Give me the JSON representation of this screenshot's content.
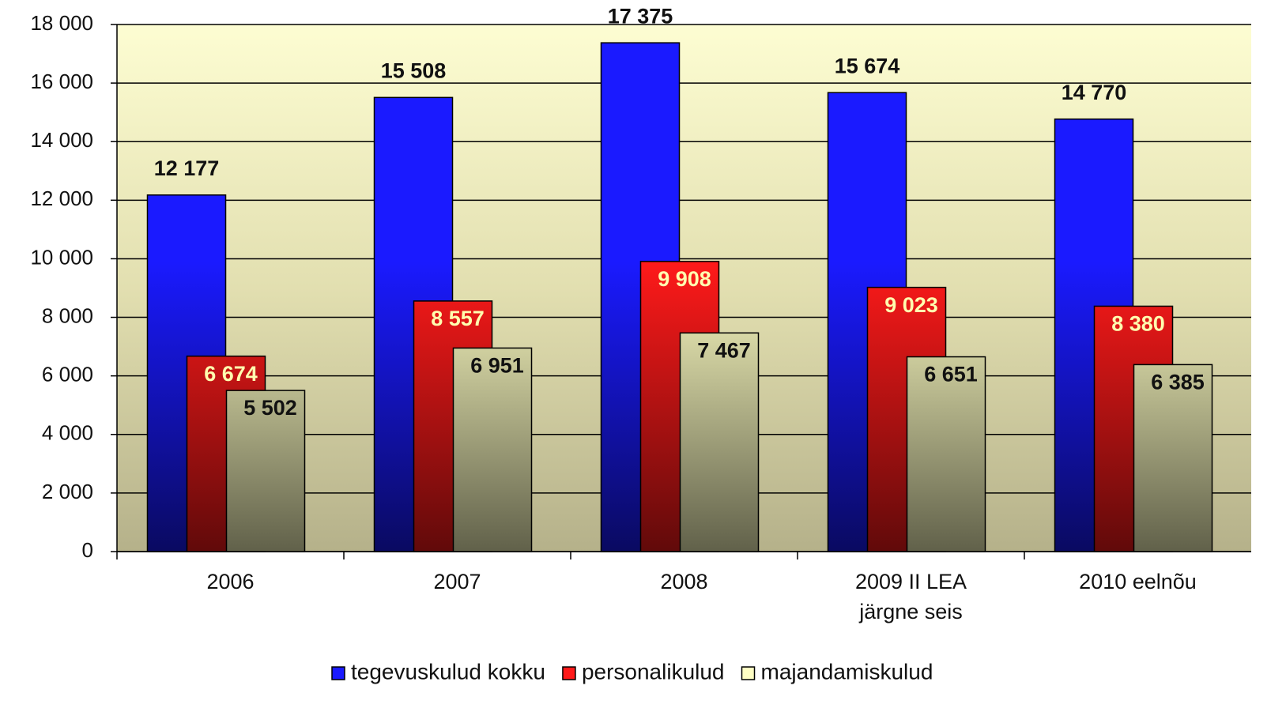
{
  "chart_data": {
    "type": "bar",
    "categories": [
      "2006",
      "2007",
      "2008",
      "2009 II LEA\njärgne seis",
      "2010 eelnõu"
    ],
    "series": [
      {
        "name": "tegevuskulud kokku",
        "color": "#1a1aff",
        "values": [
          12177,
          15508,
          17375,
          15674,
          14770
        ],
        "value_labels": [
          "12 177",
          "15 508",
          "17 375",
          "15 674",
          "14 770"
        ]
      },
      {
        "name": "personalikulud",
        "color": "#ff1a1a",
        "values": [
          6674,
          8557,
          9908,
          9023,
          8380
        ],
        "value_labels": [
          "6 674",
          "8 557",
          "9 908",
          "9 023",
          "8 380"
        ]
      },
      {
        "name": "majandamiskulud",
        "color": "#ffffc4",
        "values": [
          5502,
          6951,
          7467,
          6651,
          6385
        ],
        "value_labels": [
          "5 502",
          "6 951",
          "7 467",
          "6 651",
          "6 385"
        ]
      }
    ],
    "ylim": [
      0,
      18000
    ],
    "yticks": [
      0,
      {
        "value": 2000,
        "label": "2 000"
      },
      {
        "value": 4000,
        "label": "4 000"
      },
      {
        "value": 6000,
        "label": "6 000"
      },
      {
        "value": 8000,
        "label": "8 000"
      },
      {
        "value": 10000,
        "label": "10 000"
      },
      {
        "value": 12000,
        "label": "12 000"
      },
      {
        "value": 14000,
        "label": "14 000"
      },
      {
        "value": 16000,
        "label": "16 000"
      },
      {
        "value": 18000,
        "label": "18 000"
      }
    ],
    "grid": true,
    "legend": "bottom"
  }
}
